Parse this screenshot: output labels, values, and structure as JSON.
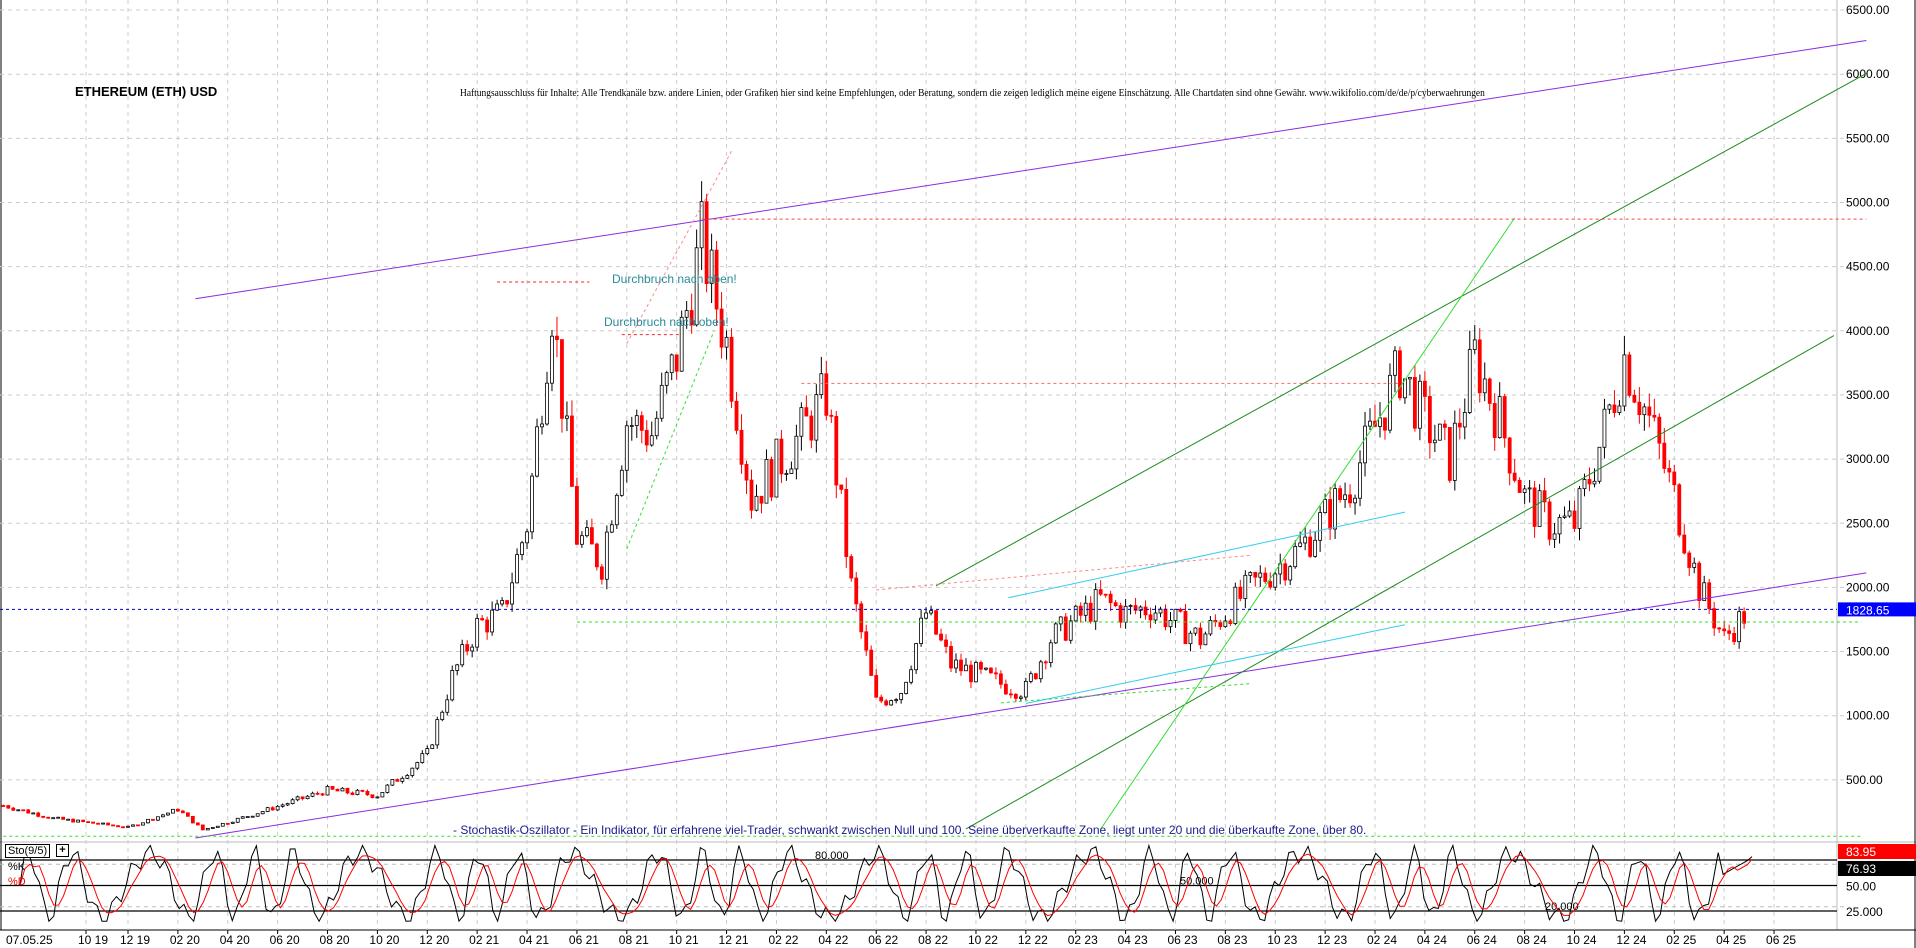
{
  "header": {
    "title": "ETHEREUM (ETH) USD",
    "disclaimer": "Haftungsausschluss für Inhalte: Alle Trendkanäle bzw. andere Linien, oder Grafiken hier sind keine Empfehlungen, oder Beratung, sondern die zeigen lediglich meine eigene Einschätzung. Alle Chartdaten sind ohne Gewähr.  www.wikifolio.com/de/de/p/cyberwaehrungen"
  },
  "annotations": {
    "breakout_1": "Durchbruch nach oben!",
    "breakout_2": "Durchbruch nach oben!",
    "stoch_caption": "- Stochastik-Oszillator - Ein Indikator, für erfahrene viel-Trader, schwankt zwischen Null und 100. Seine überverkaufte Zone, liegt unter 20 und die überkaufte Zone, über 80."
  },
  "colors": {
    "up": "#000000",
    "down": "#ff0000",
    "channel": "#8a2be2",
    "trend_dark": "#1a8a1a",
    "trend_light": "#33dd33",
    "cyan": "#33ccee",
    "last_price_bg": "#0000ff"
  },
  "chart_data": [
    {
      "type": "candlestick",
      "title": "ETHEREUM (ETH) USD",
      "x_unit": "months since 12/2019",
      "ylim": [
        0,
        6550
      ],
      "yticks": [
        "500.00",
        "1000.00",
        "1500.00",
        "2000.00",
        "2500.00",
        "3000.00",
        "3500.00",
        "4000.00",
        "4500.00",
        "5000.00",
        "5500.00",
        "6000.00",
        "6500.00"
      ],
      "ytick_values": [
        500,
        1000,
        1500,
        2000,
        2500,
        3000,
        3500,
        4000,
        4500,
        5000,
        5500,
        6000,
        6500
      ],
      "last_price": "1828.65",
      "last_price_value": 1828.65,
      "xticks": [
        "07.05.25",
        "10 19",
        "12 19",
        "02 20",
        "04 20",
        "06 20",
        "08 20",
        "10 20",
        "12 20",
        "02 21",
        "04 21",
        "06 21",
        "08 21",
        "10 21",
        "12 21",
        "02 22",
        "04 22",
        "06 22",
        "08 22",
        "10 22",
        "12 22",
        "02 23",
        "04 23",
        "06 23",
        "08 23",
        "10 23",
        "12 23",
        "02 24",
        "04 24",
        "06 24",
        "08 24",
        "10 24",
        "12 24",
        "02 25",
        "04 25",
        "06 25"
      ],
      "price_path": [
        [
          -5,
          300
        ],
        [
          -3,
          200
        ],
        [
          0,
          130
        ],
        [
          2,
          270
        ],
        [
          3,
          110
        ],
        [
          5,
          230
        ],
        [
          8,
          420
        ],
        [
          10,
          380
        ],
        [
          12,
          700
        ],
        [
          13,
          1300
        ],
        [
          14,
          1700
        ],
        [
          15,
          1800
        ],
        [
          16,
          2500
        ],
        [
          17,
          4200
        ],
        [
          18,
          2400
        ],
        [
          19,
          2200
        ],
        [
          20,
          3300
        ],
        [
          21,
          3200
        ],
        [
          22,
          3800
        ],
        [
          23,
          4700
        ],
        [
          24,
          3900
        ],
        [
          25,
          2700
        ],
        [
          27,
          3200
        ],
        [
          28,
          3500
        ],
        [
          29,
          2000
        ],
        [
          30,
          1100
        ],
        [
          31,
          1200
        ],
        [
          32,
          1800
        ],
        [
          33,
          1400
        ],
        [
          35,
          1250
        ],
        [
          36,
          1200
        ],
        [
          37,
          1600
        ],
        [
          39,
          1900
        ],
        [
          40,
          1800
        ],
        [
          41,
          1850
        ],
        [
          43,
          1600
        ],
        [
          45,
          2000
        ],
        [
          47,
          2300
        ],
        [
          49,
          2800
        ],
        [
          51,
          3700
        ],
        [
          52,
          3300
        ],
        [
          53,
          3000
        ],
        [
          54,
          3800
        ],
        [
          55,
          3300
        ],
        [
          56,
          2700
        ],
        [
          57,
          2500
        ],
        [
          58,
          2500
        ],
        [
          59,
          3100
        ],
        [
          60,
          3800
        ],
        [
          61,
          3300
        ],
        [
          62,
          2700
        ],
        [
          63,
          2000
        ],
        [
          64,
          1600
        ],
        [
          65,
          1830
        ]
      ],
      "lines": [
        {
          "name": "channel-upper",
          "color": "#8a2be2",
          "dash": false,
          "from": [
            2.7,
            4250
          ],
          "to": [
            69.7,
            6263
          ]
        },
        {
          "name": "channel-lower",
          "color": "#8a2be2",
          "dash": false,
          "from": [
            2.7,
            47
          ],
          "to": [
            69.7,
            2113
          ]
        },
        {
          "name": "trend-dark-1",
          "color": "#1a8a1a",
          "dash": false,
          "from": [
            32.4,
            2012
          ],
          "to": [
            69.7,
            6006
          ]
        },
        {
          "name": "trend-dark-2",
          "color": "#1a8a1a",
          "dash": false,
          "from": [
            33.6,
            117
          ],
          "to": [
            68.4,
            3963
          ]
        },
        {
          "name": "trend-light",
          "color": "#33dd33",
          "dash": false,
          "from": [
            39,
            117
          ],
          "to": [
            55.6,
            4880
          ]
        },
        {
          "name": "cyan-1",
          "color": "#33ccee",
          "dash": false,
          "from": [
            35.3,
            1919
          ],
          "to": [
            51.2,
            2587
          ]
        },
        {
          "name": "cyan-2",
          "color": "#33ccee",
          "dash": false,
          "from": [
            36,
            1095
          ],
          "to": [
            51.2,
            1709
          ]
        },
        {
          "name": "ath-level",
          "color": "#ff4444",
          "dash": true,
          "from": [
            23,
            4870
          ],
          "to": [
            69.7,
            4870
          ]
        },
        {
          "name": "resistance-3590",
          "color": "#ff6666",
          "dash": true,
          "from": [
            27,
            3590
          ],
          "to": [
            51,
            3590
          ]
        },
        {
          "name": "support-1730",
          "color": "#33dd33",
          "dash": true,
          "from": [
            18,
            1730
          ],
          "to": [
            69.5,
            1730
          ]
        },
        {
          "name": "bottom-level",
          "color": "#33dd33",
          "dash": true,
          "from": [
            -5,
            60
          ],
          "to": [
            69.5,
            60
          ]
        },
        {
          "name": "breakout-level-1",
          "color": "#ff2222",
          "dash": true,
          "from": [
            14.8,
            4380
          ],
          "to": [
            18.5,
            4380
          ]
        },
        {
          "name": "breakout-level-2",
          "color": "#ff2222",
          "dash": true,
          "from": [
            19.8,
            3970
          ],
          "to": [
            22.2,
            3970
          ]
        },
        {
          "name": "trend-dash-red",
          "color": "#ff8888",
          "dash": true,
          "from": [
            20,
            3900
          ],
          "to": [
            24.2,
            5400
          ]
        },
        {
          "name": "trend-dash-green",
          "color": "#33dd33",
          "dash": true,
          "from": [
            20,
            2300
          ],
          "to": [
            23.5,
            4000
          ]
        },
        {
          "name": "trend-dash-red-2",
          "color": "#ff8888",
          "dash": true,
          "from": [
            30,
            1980
          ],
          "to": [
            45,
            2250
          ]
        },
        {
          "name": "trend-dash-green-2",
          "color": "#33dd33",
          "dash": true,
          "from": [
            35,
            1100
          ],
          "to": [
            45,
            1250
          ]
        }
      ]
    },
    {
      "type": "line",
      "title": "Sto(9/5)",
      "series": [
        {
          "name": "%K",
          "color": "#000000"
        },
        {
          "name": "%D",
          "color": "#ff0000"
        }
      ],
      "ylim": [
        0,
        100
      ],
      "levels": [
        80,
        50,
        20
      ],
      "level_labels": [
        "80.000",
        "50.000",
        "20.000"
      ],
      "right_labels": {
        "k_value": "83.95",
        "d_value": "76.93",
        "mid": "50.00",
        "low": "25.000"
      },
      "last_k": 83.95,
      "last_d": 76.93
    }
  ]
}
